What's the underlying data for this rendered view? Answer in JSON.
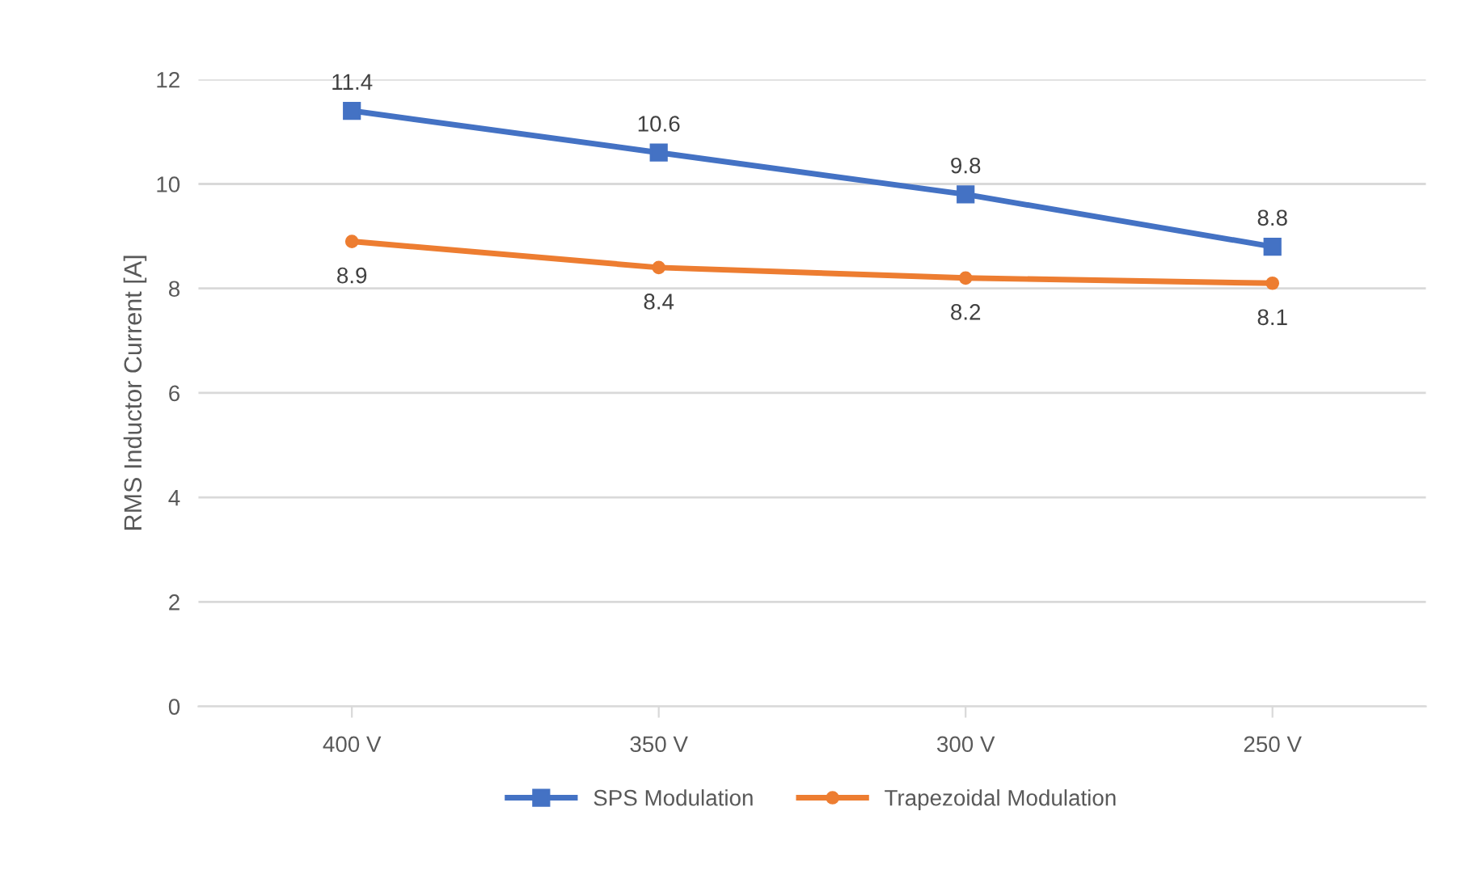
{
  "chart_data": {
    "type": "line",
    "ylabel": "RMS Inductor Current [A]",
    "categories": [
      "400 V",
      "350 V",
      "300 V",
      "250 V"
    ],
    "series": [
      {
        "name": "SPS Modulation",
        "color": "#4472c4",
        "marker": "square",
        "values": [
          11.4,
          10.6,
          9.8,
          8.8
        ]
      },
      {
        "name": "Trapezoidal Modulation",
        "color": "#ed7d31",
        "marker": "circle",
        "values": [
          8.9,
          8.4,
          8.2,
          8.1
        ]
      }
    ],
    "ylim": [
      0,
      12
    ],
    "yticks": [
      0,
      2,
      4,
      6,
      8,
      10,
      12
    ],
    "grid": "y",
    "legend": "bottom",
    "data_labels": true
  }
}
